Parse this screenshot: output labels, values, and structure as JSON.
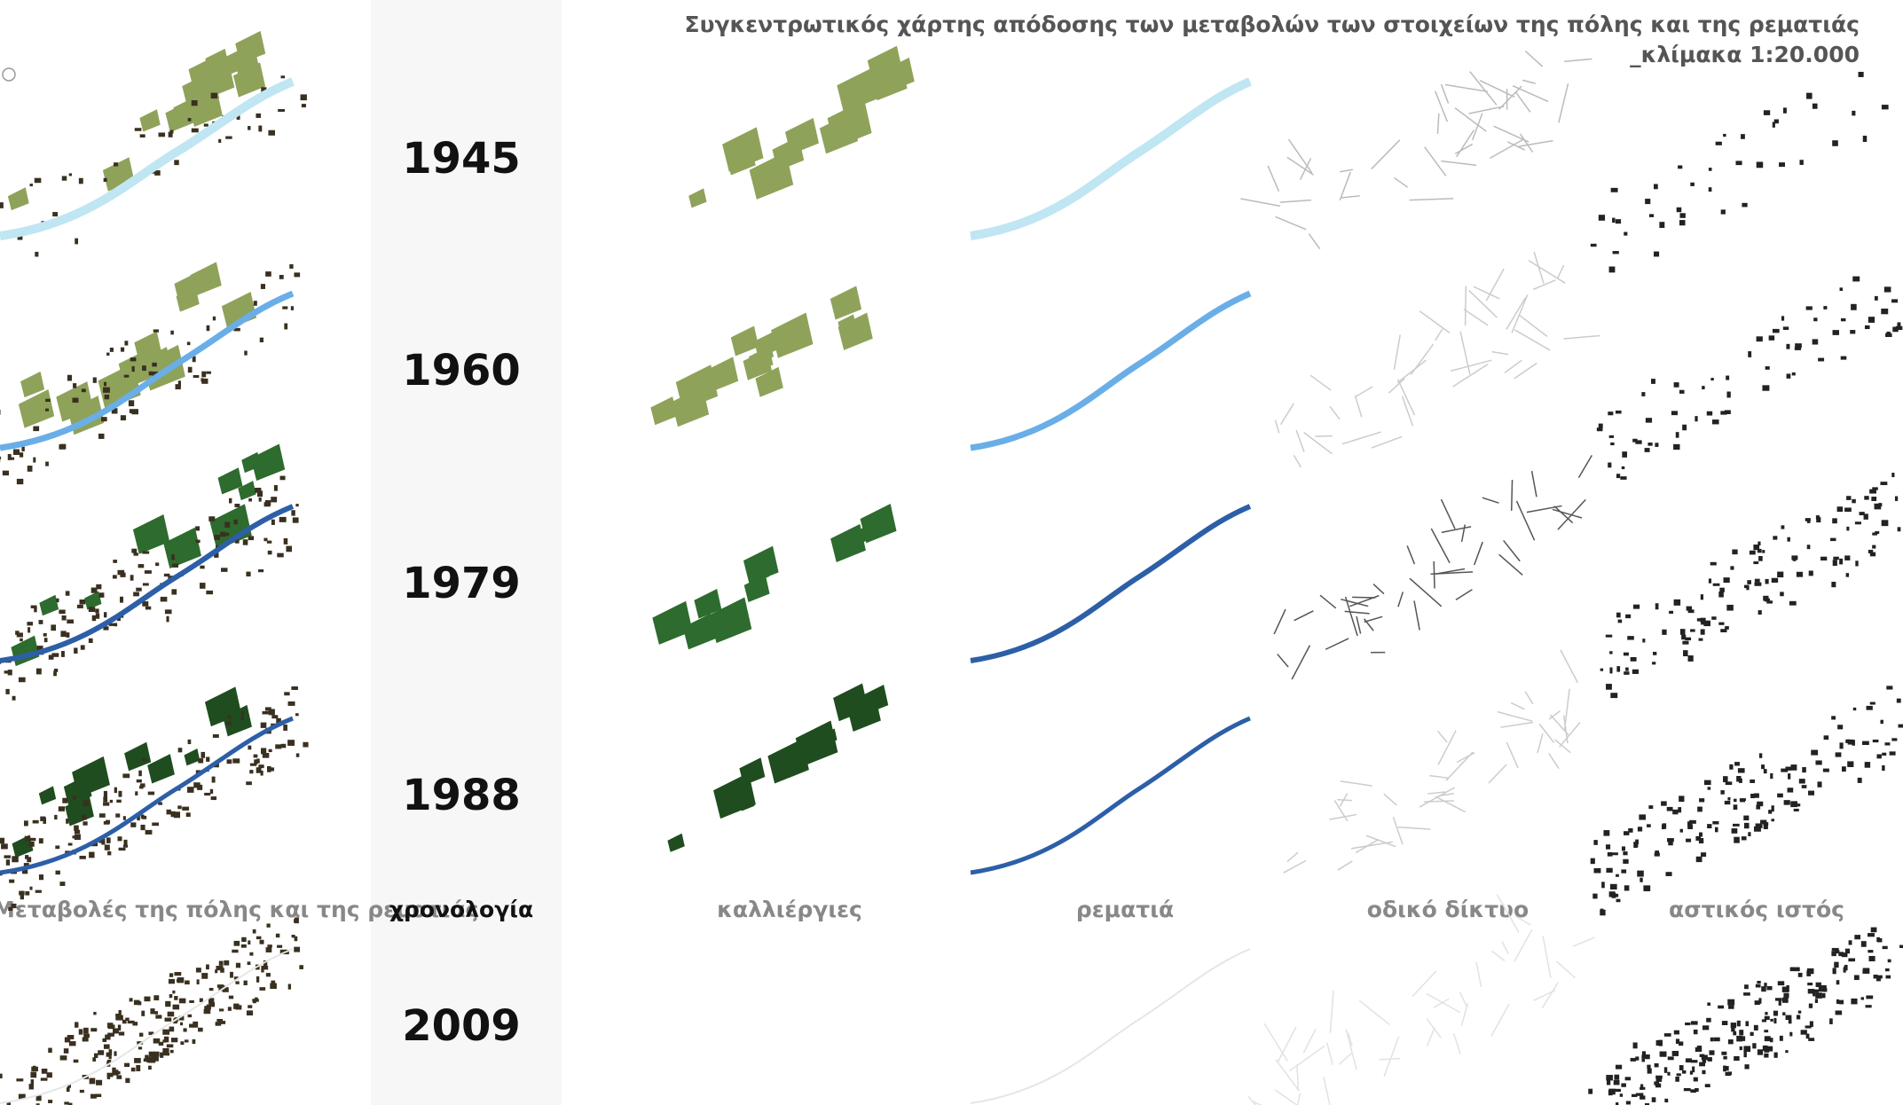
{
  "header": {
    "title": "Συγκεντρωτικός χάρτης απόδοσης των μεταβολών των στοιχείων της πόλης και της ρεματιάς",
    "scale": "_κλίμακα 1:20.000"
  },
  "rows": [
    {
      "year": "1945"
    },
    {
      "year": "1960"
    },
    {
      "year": "1979"
    },
    {
      "year": "1988"
    },
    {
      "year": "2009"
    }
  ],
  "columns": [
    "Μεταβολές της πόλης και της ρεματιάς",
    "χρονολογία",
    "καλλιέργιες",
    "ρεματιά",
    "οδικό δίκτυο",
    "αστικός ιστός"
  ]
}
